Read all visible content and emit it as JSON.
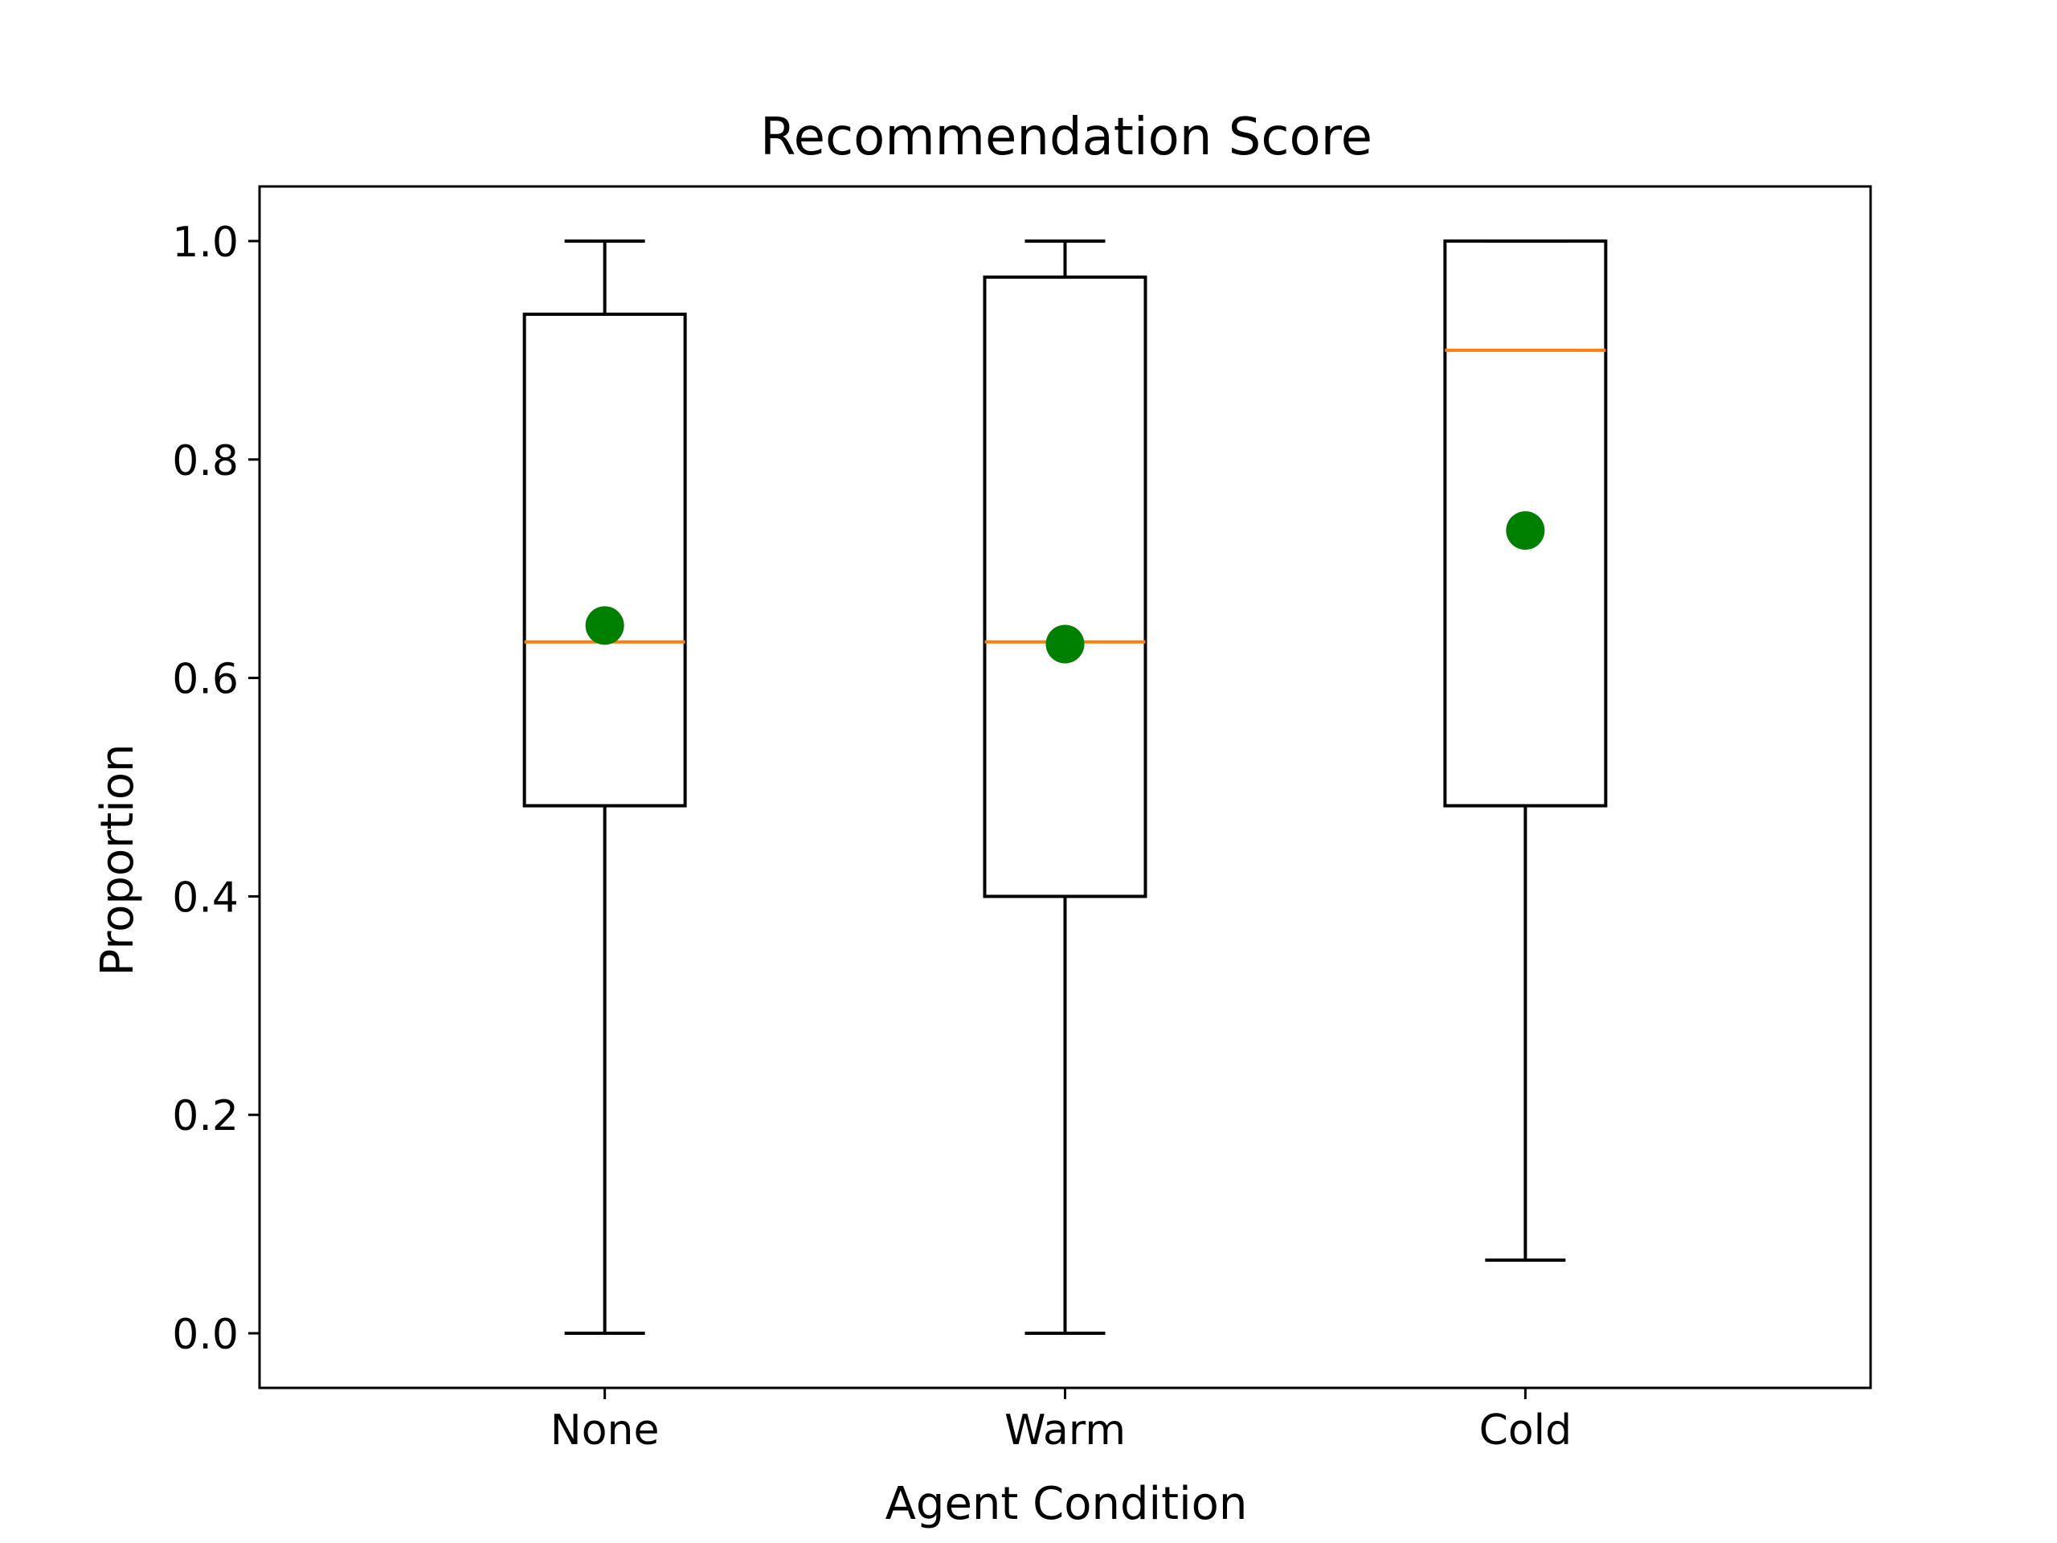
{
  "chart_data": {
    "type": "box",
    "title": "Recommendation Score",
    "xlabel": "Agent Condition",
    "ylabel": "Proportion",
    "ylim": [
      -0.05,
      1.05
    ],
    "yticks": [
      0.0,
      0.2,
      0.4,
      0.6,
      0.8,
      1.0
    ],
    "ytick_labels": [
      "0.0",
      "0.2",
      "0.4",
      "0.6",
      "0.8",
      "1.0"
    ],
    "categories": [
      "None",
      "Warm",
      "Cold"
    ],
    "boxes": [
      {
        "category": "None",
        "whisker_low": 0.0,
        "q1": 0.483,
        "median": 0.633,
        "q3": 0.933,
        "whisker_high": 1.0,
        "mean": 0.648
      },
      {
        "category": "Warm",
        "whisker_low": 0.0,
        "q1": 0.4,
        "median": 0.633,
        "q3": 0.967,
        "whisker_high": 1.0,
        "mean": 0.631
      },
      {
        "category": "Cold",
        "whisker_low": 0.067,
        "q1": 0.483,
        "median": 0.9,
        "q3": 1.0,
        "whisker_high": 1.0,
        "mean": 0.735
      }
    ],
    "grid": false,
    "colors": {
      "box": "#000000",
      "median": "#ff7f0e",
      "mean": "#008000"
    }
  }
}
